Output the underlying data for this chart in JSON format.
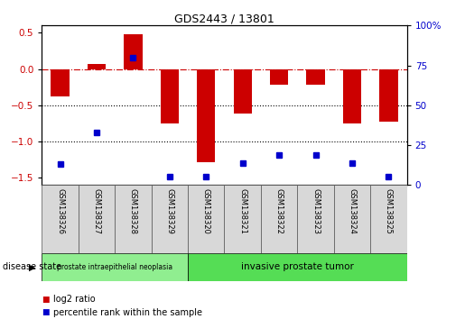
{
  "title": "GDS2443 / 13801",
  "samples": [
    "GSM138326",
    "GSM138327",
    "GSM138328",
    "GSM138329",
    "GSM138320",
    "GSM138321",
    "GSM138322",
    "GSM138323",
    "GSM138324",
    "GSM138325"
  ],
  "log2_ratio": [
    -0.38,
    0.07,
    0.48,
    -0.75,
    -1.28,
    -0.62,
    -0.22,
    -0.22,
    -0.75,
    -0.72
  ],
  "percentile_rank": [
    13,
    33,
    80,
    5,
    5,
    14,
    19,
    19,
    14,
    5
  ],
  "bar_color": "#cc0000",
  "dot_color": "#0000cc",
  "left_ylim": [
    -1.6,
    0.6
  ],
  "right_ylim": [
    0,
    100
  ],
  "left_yticks": [
    -1.5,
    -1.0,
    -0.5,
    0.0,
    0.5
  ],
  "right_yticks": [
    0,
    25,
    50,
    75,
    100
  ],
  "hline_y": 0.0,
  "dotted_lines": [
    -0.5,
    -1.0
  ],
  "groups": [
    {
      "label": "prostate intraepithelial neoplasia",
      "start": 0,
      "end": 4,
      "color": "#90ee90"
    },
    {
      "label": "invasive prostate tumor",
      "start": 4,
      "end": 10,
      "color": "#55dd55"
    }
  ],
  "disease_state_label": "disease state",
  "legend_items": [
    {
      "label": "log2 ratio",
      "color": "#cc0000"
    },
    {
      "label": "percentile rank within the sample",
      "color": "#0000cc"
    }
  ],
  "bar_width": 0.5
}
